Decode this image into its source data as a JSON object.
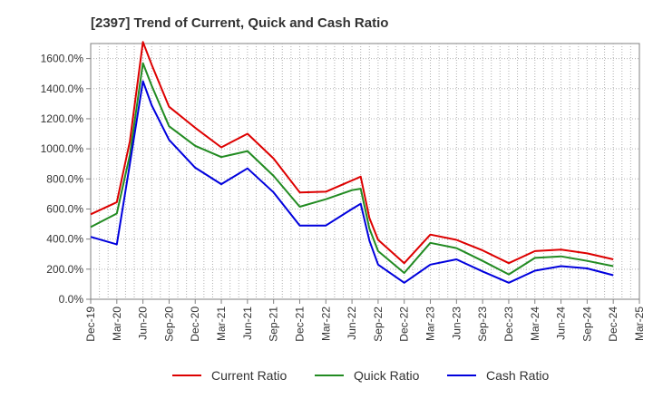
{
  "chart_data": {
    "type": "line",
    "title": "[2397]  Trend of Current, Quick and Cash Ratio",
    "xlabel": "",
    "ylabel": "",
    "ylim": [
      0,
      1700
    ],
    "yticks": [
      0,
      200,
      400,
      600,
      800,
      1000,
      1200,
      1400,
      1600
    ],
    "ytick_labels": [
      "0.0%",
      "200.0%",
      "400.0%",
      "600.0%",
      "800.0%",
      "1000.0%",
      "1200.0%",
      "1400.0%",
      "1600.0%"
    ],
    "categories": [
      "Dec-19",
      "Mar-20",
      "Jun-20",
      "Sep-20",
      "Dec-20",
      "Mar-21",
      "Jun-21",
      "Sep-21",
      "Dec-21",
      "Mar-22",
      "Jun-22",
      "Sep-22",
      "Dec-22",
      "Mar-23",
      "Jun-23",
      "Sep-23",
      "Dec-23",
      "Mar-24",
      "Jun-24",
      "Sep-24",
      "Dec-24",
      "Mar-25"
    ],
    "x": [
      0,
      2,
      3,
      3.3,
      4,
      5,
      6,
      7,
      8,
      9,
      10,
      11,
      12,
      13,
      14,
      15,
      16,
      17,
      18,
      19,
      20,
      21,
      22,
      23,
      24,
      25,
      26,
      27,
      28,
      29,
      30,
      31,
      32,
      33,
      34,
      35,
      36,
      37,
      38,
      39,
      40,
      41,
      42,
      43,
      44,
      45,
      46,
      47,
      48,
      49,
      50,
      51,
      52,
      53,
      54,
      55,
      56,
      57,
      58,
      59,
      60,
      61,
      62,
      63
    ],
    "series": [
      {
        "name": "Current Ratio",
        "color": "#dd0000",
        "x": [
          0,
          3,
          4.5,
          6,
          7,
          9,
          12,
          15,
          18,
          21,
          24,
          27,
          30,
          31,
          32,
          33,
          36,
          39,
          42,
          45,
          48,
          51,
          54,
          57,
          60
        ],
        "values": [
          565,
          645,
          1050,
          1710,
          1560,
          1280,
          1140,
          1010,
          1100,
          935,
          710,
          715,
          790,
          815,
          540,
          395,
          240,
          430,
          395,
          325,
          240,
          320,
          330,
          305,
          265
        ]
      },
      {
        "name": "Quick Ratio",
        "color": "#228b22",
        "x": [
          0,
          3,
          4.5,
          6,
          7,
          9,
          12,
          15,
          18,
          21,
          24,
          27,
          30,
          31,
          32,
          33,
          36,
          39,
          42,
          45,
          48,
          51,
          54,
          57,
          60
        ],
        "values": [
          480,
          570,
          960,
          1570,
          1420,
          1150,
          1020,
          945,
          985,
          820,
          615,
          665,
          725,
          735,
          470,
          320,
          175,
          375,
          340,
          255,
          165,
          275,
          285,
          255,
          220
        ]
      },
      {
        "name": "Cash Ratio",
        "color": "#0000dd",
        "x": [
          0,
          3,
          4.5,
          6,
          7,
          9,
          12,
          15,
          18,
          21,
          24,
          27,
          30,
          31,
          32,
          33,
          36,
          39,
          42,
          45,
          48,
          51,
          54,
          57,
          60
        ],
        "values": [
          415,
          365,
          900,
          1450,
          1290,
          1060,
          875,
          765,
          870,
          710,
          490,
          490,
          600,
          635,
          390,
          230,
          110,
          230,
          265,
          185,
          110,
          190,
          220,
          205,
          160
        ]
      }
    ],
    "legend": [
      "Current Ratio",
      "Quick Ratio",
      "Cash Ratio"
    ],
    "legend_position": "bottom",
    "grid": true
  }
}
